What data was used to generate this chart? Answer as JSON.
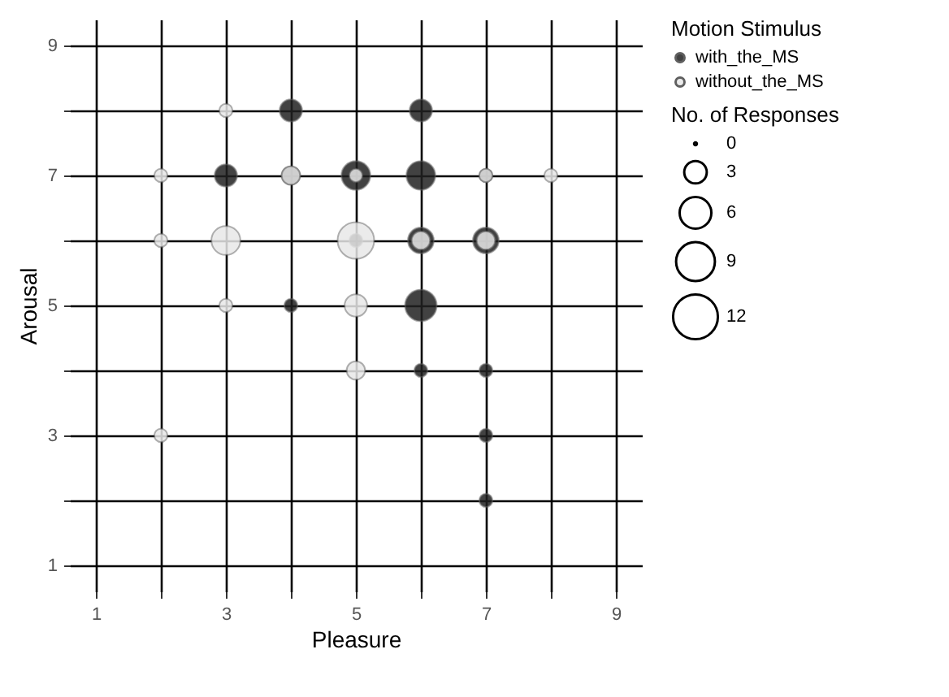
{
  "chart_data": {
    "type": "bubble",
    "xlabel": "Pleasure",
    "ylabel": "Arousal",
    "legend_title": "Motion Stimulus",
    "annotations": [
      "No. of Responses"
    ],
    "xlim": [
      0.6,
      9.4
    ],
    "ylim": [
      0.6,
      9.4
    ],
    "xticks": [
      1,
      {
        "value": 2,
        "label": null
      },
      3,
      {
        "value": 4,
        "label": null
      },
      5,
      {
        "value": 6,
        "label": null
      },
      7,
      {
        "value": 8,
        "label": null
      },
      9
    ],
    "yticks": [
      1,
      {
        "value": 2,
        "label": null
      },
      3,
      {
        "value": 4,
        "label": null
      },
      5,
      {
        "value": 6,
        "label": null
      },
      7,
      {
        "value": 8,
        "label": null
      },
      9
    ],
    "grid": true,
    "legend": "right",
    "size_legend": [
      0,
      3,
      6,
      9,
      12
    ],
    "series": [
      {
        "name": "with_the_MS",
        "color": "#222222",
        "x": [
          4,
          6,
          3,
          4,
          5,
          6,
          7,
          6,
          7,
          5,
          4,
          6,
          6,
          7,
          7,
          7
        ],
        "values": [
          8,
          8,
          7,
          7,
          7,
          7,
          7,
          6,
          6,
          6,
          5,
          5,
          4,
          4,
          3,
          2
        ],
        "sizes": [
          3,
          3,
          3,
          2,
          5,
          5,
          1,
          4,
          4,
          1,
          1,
          6,
          1,
          1,
          1,
          1
        ]
      },
      {
        "name": "without_the_MS",
        "color": "#e8e8e8",
        "x": [
          3,
          2,
          4,
          5,
          7,
          8,
          2,
          3,
          5,
          6,
          7,
          3,
          5,
          5,
          2
        ],
        "values": [
          8,
          7,
          7,
          7,
          7,
          7,
          6,
          6,
          6,
          6,
          6,
          5,
          5,
          4,
          3
        ],
        "sizes": [
          1,
          1,
          2,
          1,
          1,
          1,
          1,
          5,
          8,
          2,
          2,
          1,
          3,
          2,
          1
        ]
      }
    ]
  }
}
